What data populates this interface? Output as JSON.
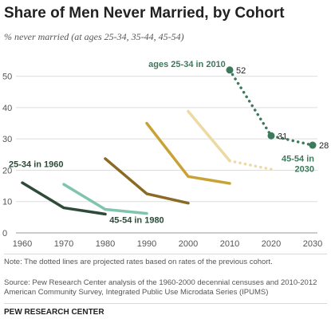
{
  "header": {
    "title": "Share of Men Never Married, by Cohort",
    "subtitle": "% never married (at ages 25-34, 35-44, 45-54)"
  },
  "footer": {
    "note": "Note: The dotted lines are projected rates based on rates of the previous cohort.",
    "source": "Source: Pew Research Center analysis of the 1960-2000 decennial censuses and 2010-2012 American Community Survey, Integrated Public Use Microdata Series (IPUMS)",
    "brand": "PEW RESEARCH CENTER"
  },
  "chart_data": {
    "type": "line",
    "x_ticks": [
      "1960",
      "1970",
      "1980",
      "1990",
      "2000",
      "2010",
      "2020",
      "2030"
    ],
    "y_ticks": [
      "0",
      "10",
      "20",
      "30",
      "40",
      "50"
    ],
    "xlim": [
      1960,
      2030
    ],
    "ylim": [
      0,
      55
    ],
    "grid": "horizontal",
    "series": [
      {
        "color": "#2e4a38",
        "points": [
          [
            1960,
            16
          ],
          [
            1970,
            8
          ],
          [
            1980,
            6
          ]
        ],
        "projected": []
      },
      {
        "color": "#7fc4ae",
        "points": [
          [
            1970,
            15.5
          ],
          [
            1980,
            7.5
          ],
          [
            1990,
            6.2
          ]
        ],
        "projected": []
      },
      {
        "color": "#8a6a24",
        "points": [
          [
            1980,
            23.7
          ],
          [
            1990,
            12.5
          ],
          [
            2000,
            9.5
          ]
        ],
        "projected": []
      },
      {
        "color": "#c9a235",
        "points": [
          [
            1990,
            35
          ],
          [
            2000,
            18
          ],
          [
            2010,
            15.8
          ]
        ],
        "projected": []
      },
      {
        "color": "#eed9a4",
        "points": [
          [
            2000,
            38.8
          ],
          [
            2010,
            23
          ]
        ],
        "projected": [
          [
            2010,
            23
          ],
          [
            2020,
            20.3
          ]
        ]
      },
      {
        "color": "#3d7a5c",
        "points": [
          [
            2010,
            52
          ]
        ],
        "projected": [
          [
            2010,
            52
          ],
          [
            2020,
            31
          ],
          [
            2030,
            28
          ]
        ]
      }
    ],
    "annotations": [
      {
        "text": "25-34 in 1960",
        "x": 1960,
        "y": 21,
        "color": "#2e4a38"
      },
      {
        "text": "45-54 in 1980",
        "x": 1981,
        "y": 3.2,
        "color": "#2e4a38"
      },
      {
        "text": "ages 25-34 in 2010",
        "x": 2009,
        "y": 53,
        "color": "#3d7a5c"
      },
      {
        "text": "45-54 in",
        "x": 2030,
        "y": 22.8,
        "color": "#3d7a5c"
      },
      {
        "text": "2030",
        "x": 2030,
        "y": 19.5,
        "color": "#3d7a5c"
      }
    ],
    "value_labels": [
      {
        "text": "52",
        "x": 2010,
        "y": 52
      },
      {
        "text": "31",
        "x": 2020,
        "y": 31
      },
      {
        "text": "28",
        "x": 2030,
        "y": 28
      }
    ]
  }
}
